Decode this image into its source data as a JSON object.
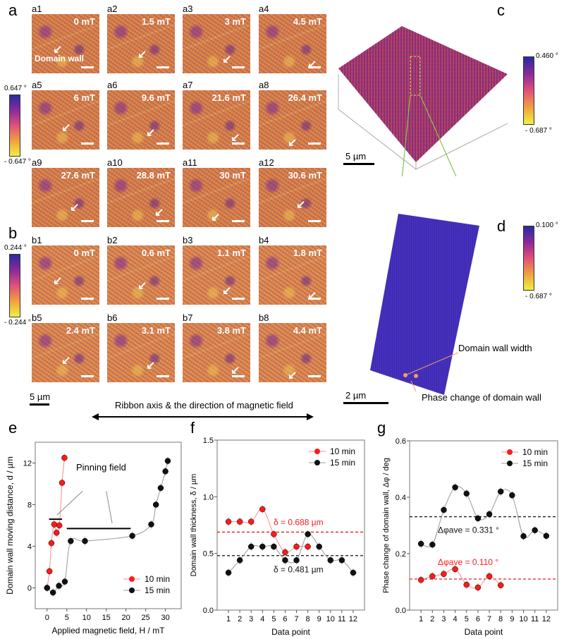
{
  "panel_a": {
    "label": "a",
    "colorbar": {
      "max": "0.647 °",
      "min": "- 0.647 °"
    },
    "annotation": "Domain wall",
    "images": [
      {
        "id": "a1",
        "field": "0 mT"
      },
      {
        "id": "a2",
        "field": "1.5 mT"
      },
      {
        "id": "a3",
        "field": "3 mT"
      },
      {
        "id": "a4",
        "field": "4.5 mT"
      },
      {
        "id": "a5",
        "field": "6 mT"
      },
      {
        "id": "a6",
        "field": "9.6 mT"
      },
      {
        "id": "a7",
        "field": "21.6 mT"
      },
      {
        "id": "a8",
        "field": "26.4 mT"
      },
      {
        "id": "a9",
        "field": "27.6 mT"
      },
      {
        "id": "a10",
        "field": "28.8 mT"
      },
      {
        "id": "a11",
        "field": "30 mT"
      },
      {
        "id": "a12",
        "field": "30.6 mT"
      }
    ]
  },
  "panel_b": {
    "label": "b",
    "colorbar": {
      "max": "0.244 °",
      "min": "- 0.244 °"
    },
    "images": [
      {
        "id": "b1",
        "field": "0 mT"
      },
      {
        "id": "b2",
        "field": "0.6 mT"
      },
      {
        "id": "b3",
        "field": "1.1 mT"
      },
      {
        "id": "b4",
        "field": "1.8 mT"
      },
      {
        "id": "b5",
        "field": "2.4 mT"
      },
      {
        "id": "b6",
        "field": "3.1 mT"
      },
      {
        "id": "b7",
        "field": "3.8 mT"
      },
      {
        "id": "b8",
        "field": "4.4 mT"
      }
    ]
  },
  "scale_ab": "5 µm",
  "axis_note": "Ribbon axis & the direction of magnetic field",
  "panel_c": {
    "label": "c",
    "colorbar": {
      "max": "0.460 °",
      "min": "- 0.687 °"
    },
    "scale": "5 µm"
  },
  "panel_d": {
    "label": "d",
    "colorbar": {
      "max": "0.100 °",
      "min": "- 0.687 °"
    },
    "scale": "2 µm",
    "annotations": [
      "Domain wall width",
      "Phase change of domain wall"
    ]
  },
  "colors": {
    "red": "#ff1a1a",
    "black": "#111111",
    "gray_line": "#999999"
  },
  "chart_data": [
    {
      "panel": "e",
      "type": "scatter",
      "xlabel": "Applied magnetic field, H / mT",
      "ylabel": "Domain wall moving distance, d / µm",
      "xlim": [
        -3,
        34
      ],
      "ylim": [
        -2,
        14
      ],
      "xticks": [
        0,
        5,
        10,
        15,
        20,
        25,
        30
      ],
      "yticks": [
        0,
        4,
        8,
        12
      ],
      "legend": "bottom-right",
      "annotation": "Pinning field",
      "series": [
        {
          "name": "10 min",
          "color": "#ff1a1a",
          "x": [
            0,
            0.6,
            1.1,
            1.8,
            2.4,
            3.1,
            3.8,
            4.4
          ],
          "y": [
            0,
            1.6,
            4.3,
            6.1,
            5.3,
            6.0,
            10.1,
            12.5
          ]
        },
        {
          "name": "15 min",
          "color": "#111111",
          "x": [
            0,
            1.5,
            3,
            4.5,
            6,
            9.6,
            21.6,
            26.4,
            27.6,
            28.8,
            30,
            30.6
          ],
          "y": [
            0,
            -0.45,
            0.2,
            0.6,
            4.5,
            4.5,
            5.0,
            6.1,
            8.0,
            9.6,
            11.2,
            12.2
          ]
        }
      ]
    },
    {
      "panel": "f",
      "type": "scatter",
      "xlabel": "Data point",
      "ylabel": "Domain wall thickness, δ / µm",
      "xlim": [
        0,
        13
      ],
      "ylim": [
        0,
        1.5
      ],
      "xticks": [
        1,
        2,
        3,
        4,
        5,
        6,
        7,
        8,
        9,
        10,
        11,
        12
      ],
      "yticks": [
        0.0,
        0.5,
        1.0,
        1.5
      ],
      "legend": "top-right",
      "series": [
        {
          "name": "10 min",
          "color": "#ff1a1a",
          "x": [
            1,
            2,
            3,
            4,
            5,
            6,
            7,
            8
          ],
          "y": [
            0.78,
            0.78,
            0.78,
            0.89,
            0.67,
            0.51,
            0.56,
            0.56
          ]
        },
        {
          "name": "15 min",
          "color": "#111111",
          "x": [
            1,
            2,
            3,
            4,
            5,
            6,
            7,
            8,
            9,
            10,
            11,
            12
          ],
          "y": [
            0.33,
            0.44,
            0.56,
            0.56,
            0.56,
            0.44,
            0.44,
            0.67,
            0.56,
            0.44,
            0.44,
            0.33
          ]
        }
      ],
      "averages": [
        {
          "value": 0.688,
          "label": "δ = 0.688 µm",
          "color": "#ff1a1a"
        },
        {
          "value": 0.481,
          "label": "δ = 0.481 µm",
          "color": "#111111"
        }
      ]
    },
    {
      "panel": "g",
      "type": "scatter",
      "xlabel": "Data point",
      "ylabel": "Phase change of domain wall, Δφ / deg",
      "xlim": [
        0,
        13
      ],
      "ylim": [
        0,
        0.6
      ],
      "xticks": [
        1,
        2,
        3,
        4,
        5,
        6,
        7,
        8,
        9,
        10,
        11,
        12
      ],
      "yticks": [
        0.0,
        0.2,
        0.4,
        0.6
      ],
      "legend": "top-right",
      "series": [
        {
          "name": "10 min",
          "color": "#ff1a1a",
          "x": [
            1,
            2,
            3,
            4,
            5,
            6,
            7,
            8
          ],
          "y": [
            0.107,
            0.12,
            0.128,
            0.145,
            0.09,
            0.08,
            0.12,
            0.088
          ]
        },
        {
          "name": "15 min",
          "color": "#111111",
          "x": [
            1,
            2,
            3,
            4,
            5,
            6,
            7,
            8,
            9,
            10,
            11,
            12
          ],
          "y": [
            0.235,
            0.232,
            0.355,
            0.435,
            0.413,
            0.325,
            0.34,
            0.42,
            0.407,
            0.262,
            0.283,
            0.263
          ]
        }
      ],
      "averages": [
        {
          "value": 0.11,
          "label": "Δφave = 0.110 °",
          "color": "#ff1a1a"
        },
        {
          "value": 0.331,
          "label": "Δφave = 0.331 °",
          "color": "#111111"
        }
      ]
    }
  ]
}
